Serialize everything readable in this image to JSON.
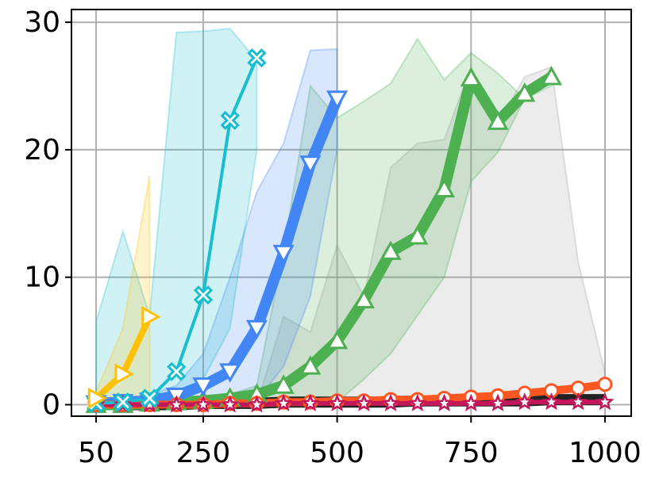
{
  "chart_data": {
    "type": "line",
    "xlim": [
      4,
      1049
    ],
    "ylim": [
      -0.9,
      31
    ],
    "xticks": [
      50,
      250,
      500,
      750,
      1000
    ],
    "yticks": [
      0,
      10,
      20,
      30
    ],
    "grid": true,
    "series": [
      {
        "color": "#222222",
        "linewidth": 14,
        "marker": null,
        "band_color": "#9e9e9e",
        "x": [
          50,
          100,
          150,
          200,
          250,
          300,
          350,
          400,
          450,
          500,
          550,
          600,
          650,
          700,
          750,
          800,
          850,
          900,
          950,
          1000
        ],
        "values": [
          0,
          0,
          0,
          0,
          0.1,
          0.1,
          0.1,
          0.2,
          0.2,
          0.2,
          0.2,
          0.2,
          0.3,
          0.3,
          0.3,
          0.3,
          0.3,
          0.4,
          0.4,
          0.4
        ],
        "band_upper": [
          0,
          0,
          0,
          0,
          0,
          0,
          0,
          6.9,
          5.7,
          12.5,
          8.5,
          18.6,
          20.5,
          20.8,
          26.5,
          22,
          25.7,
          26.5,
          11.2,
          2.5
        ],
        "band_lower": [
          0,
          0,
          0,
          0,
          0,
          0,
          0,
          0,
          0,
          0,
          0,
          0,
          0,
          0,
          0,
          0,
          0,
          0,
          0,
          0
        ]
      },
      {
        "color": "#4caf50",
        "linewidth": 14,
        "marker": "triangle-up",
        "band_color": "#4caf50",
        "x": [
          50,
          100,
          150,
          200,
          250,
          300,
          350,
          400,
          450,
          500,
          550,
          600,
          650,
          700,
          750,
          800,
          850,
          900
        ],
        "values": [
          0,
          0,
          0.1,
          0.2,
          0.3,
          0.5,
          0.8,
          1.5,
          3,
          5,
          8.2,
          12,
          13.2,
          16.9,
          25.6,
          22.2,
          24.4,
          25.7
        ],
        "band_upper": [
          0.5,
          0.5,
          0.5,
          0.5,
          0.6,
          0.8,
          1.5,
          12,
          25,
          22.5,
          23.8,
          25.2,
          28.7,
          25.5,
          27.6,
          26,
          24,
          25
        ],
        "band_lower": [
          0,
          0,
          0,
          0,
          0,
          0,
          0,
          0,
          0.1,
          0.2,
          2,
          4,
          7,
          10,
          17.5,
          19.8,
          24,
          25
        ]
      },
      {
        "color": "#4285f4",
        "linewidth": 14,
        "marker": "triangle-down",
        "band_color": "#4285f4",
        "x": [
          50,
          100,
          150,
          200,
          250,
          300,
          350,
          400,
          450,
          500
        ],
        "values": [
          0.1,
          0.2,
          0.3,
          0.7,
          1.5,
          2.6,
          6,
          11.9,
          18.9,
          24
        ],
        "band_upper": [
          0.5,
          0.5,
          0.8,
          1.5,
          4,
          10,
          16.7,
          20.5,
          27.8,
          27.9
        ],
        "band_lower": [
          0,
          0,
          0,
          0,
          0.2,
          0.5,
          0.3,
          3,
          8.5,
          20
        ]
      },
      {
        "color": "#ff5722",
        "linewidth": 10,
        "marker": "circle",
        "band_color": null,
        "x": [
          50,
          100,
          150,
          200,
          250,
          300,
          350,
          400,
          450,
          500,
          550,
          600,
          650,
          700,
          750,
          800,
          850,
          900,
          950,
          1000
        ],
        "values": [
          0,
          0,
          0,
          0,
          0,
          0.1,
          0.1,
          0.2,
          0.2,
          0.3,
          0.3,
          0.4,
          0.4,
          0.5,
          0.6,
          0.7,
          0.9,
          1.1,
          1.3,
          1.6
        ]
      },
      {
        "color": "#c2185b",
        "linewidth": 6,
        "marker": "star",
        "band_color": null,
        "x": [
          50,
          100,
          150,
          200,
          250,
          300,
          350,
          400,
          450,
          500,
          550,
          600,
          650,
          700,
          750,
          800,
          850,
          900,
          950,
          1000
        ],
        "values": [
          0,
          0,
          0,
          0,
          0,
          0,
          0,
          0.1,
          0.1,
          0.1,
          0.1,
          0.1,
          0.1,
          0.1,
          0.1,
          0.1,
          0.2,
          0.2,
          0.2,
          0.2
        ]
      },
      {
        "color": "#17becf",
        "linewidth": 4,
        "marker": "x",
        "band_color": "#17becf",
        "x": [
          50,
          100,
          150,
          200,
          250,
          300,
          350
        ],
        "values": [
          0.1,
          0.2,
          0.5,
          2.6,
          8.6,
          22.3,
          27.2
        ],
        "band_upper": [
          6.5,
          13.6,
          7,
          29.2,
          29.3,
          29.5,
          27
        ],
        "band_lower": [
          0,
          0,
          0,
          0.5,
          2,
          6,
          20
        ]
      },
      {
        "color": "#ffc107",
        "linewidth": 8,
        "marker": "triangle-right",
        "band_color": "#ffc107",
        "x": [
          50,
          100,
          150
        ],
        "values": [
          0.5,
          2.4,
          6.9
        ],
        "band_upper": [
          1,
          6,
          18
        ],
        "band_lower": [
          0,
          0,
          0
        ]
      }
    ]
  }
}
